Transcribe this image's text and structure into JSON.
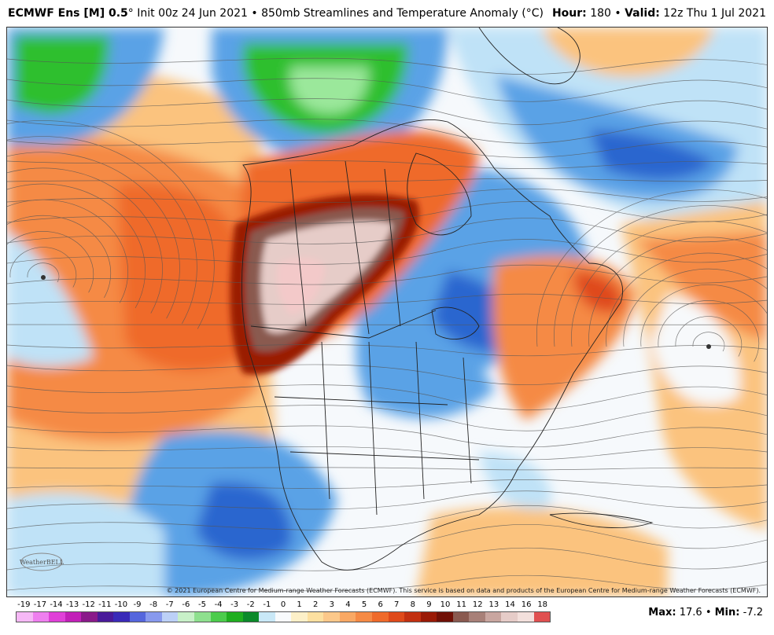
{
  "header": {
    "model": "ECMWF Ens [M] 0.5",
    "degree": "°",
    "init": "Init 00z 24 Jun 2021",
    "bullet": "•",
    "product": "850mb Streamlines and Temperature Anomaly (°C)",
    "hour_label": "Hour:",
    "hour_value": "180",
    "valid_label": "Valid:",
    "valid_value": "12z Thu 1 Jul 2021"
  },
  "map": {
    "copyright": "© 2021 European Centre for Medium-range Weather Forecasts (ECMWF). This service is based on data and products of the European Centre for Medium-range Weather Forecasts (ECMWF).",
    "logo_text": "WeatherBELL",
    "colors": {
      "warm_extreme": "#f2e6e6",
      "warm_very_strong": "#8a1a00",
      "warm_strong": "#d23a1a",
      "warm": "#f58a45",
      "warm_mild": "#fbc37e",
      "neutral": "#f7f9fb",
      "cool_mild": "#bfe2f7",
      "cool": "#5aa2e6",
      "cool_strong": "#2a66cf",
      "green": "#2fbf2f",
      "green_light": "#9be89b"
    }
  },
  "legend": {
    "labels": [
      "-19",
      "-17",
      "-14",
      "-13",
      "-12",
      "-11",
      "-10",
      "-9",
      "-8",
      "-7",
      "-6",
      "-5",
      "-4",
      "-3",
      "-2",
      "-1",
      "0",
      "1",
      "2",
      "3",
      "4",
      "5",
      "6",
      "7",
      "8",
      "9",
      "10",
      "11",
      "12",
      "13",
      "14",
      "16",
      "18"
    ],
    "colors": [
      "#f6b8f6",
      "#ef7fef",
      "#e040d8",
      "#c21fb8",
      "#8a1a8a",
      "#4a1a9a",
      "#3a2ab8",
      "#5566dd",
      "#8899ee",
      "#bcd0f7",
      "#c8f0c8",
      "#8ee08e",
      "#4ccc4c",
      "#1fae1f",
      "#0b8a2a",
      "#c9e8f7",
      "#f8fafc",
      "#fdf0c8",
      "#fde0a0",
      "#fcc88a",
      "#f9a864",
      "#f58a45",
      "#ef6a2a",
      "#df4a1a",
      "#c23010",
      "#9a1a06",
      "#701006",
      "#8a5a50",
      "#a88078",
      "#c9a6a0",
      "#e6ccc8",
      "#f3e0dc",
      "#e05050"
    ]
  },
  "stats": {
    "max_label": "Max:",
    "max_value": "17.6",
    "sep": "•",
    "min_label": "Min:",
    "min_value": "-7.2"
  }
}
